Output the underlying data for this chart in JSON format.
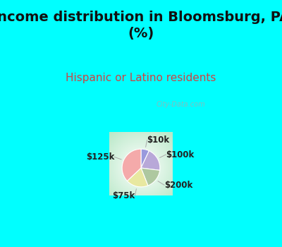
{
  "title": "Income distribution in Bloomsburg, PA\n(%)",
  "subtitle": "Hispanic or Latino residents",
  "title_color": "#111111",
  "subtitle_color": "#cc4444",
  "bg_cyan": "#00ffff",
  "bg_chart_center": "#ffffff",
  "bg_chart_edge": "#b8e8c8",
  "labels": [
    "$10k",
    "$100k",
    "$200k",
    "$75k",
    "$125k"
  ],
  "sizes": [
    7,
    20,
    17,
    19,
    37
  ],
  "colors": [
    "#9999dd",
    "#b8a8d8",
    "#aec8a0",
    "#e8e8a0",
    "#f4aaaa"
  ],
  "startangle": 90,
  "watermark": "City-Data.com",
  "title_fontsize": 14,
  "subtitle_fontsize": 11,
  "label_fontsize": 8.5
}
